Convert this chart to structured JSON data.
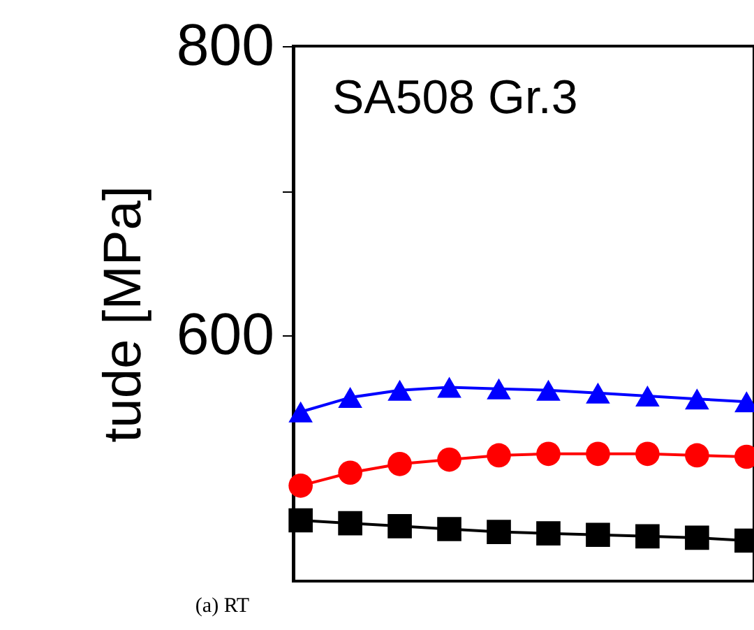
{
  "chart_data": {
    "type": "line",
    "ylabel": "tude [MPa]",
    "categories": [
      null,
      null,
      null,
      null,
      null,
      null,
      null,
      null,
      null,
      null
    ],
    "series": [
      {
        "color": "#0000ff",
        "marker": "triangle",
        "values": [
          547,
          557,
          562,
          564,
          563,
          562,
          560,
          558,
          556,
          554
        ]
      },
      {
        "color": "#ff0000",
        "marker": "circle",
        "values": [
          496,
          505,
          511,
          514,
          517,
          518,
          518,
          518,
          517,
          516
        ]
      },
      {
        "color": "#000000",
        "marker": "square",
        "values": [
          472,
          470,
          468,
          466,
          464,
          463,
          462,
          461,
          460,
          458
        ]
      }
    ],
    "ylim": [
      430,
      800
    ],
    "yticks": [
      600,
      {
        "value": 700,
        "label": null
      },
      800
    ],
    "tick_labels": "y",
    "grid": false,
    "line_style": "solid",
    "annotations": [
      "SA508 Gr.3",
      "(a)  RT"
    ]
  }
}
